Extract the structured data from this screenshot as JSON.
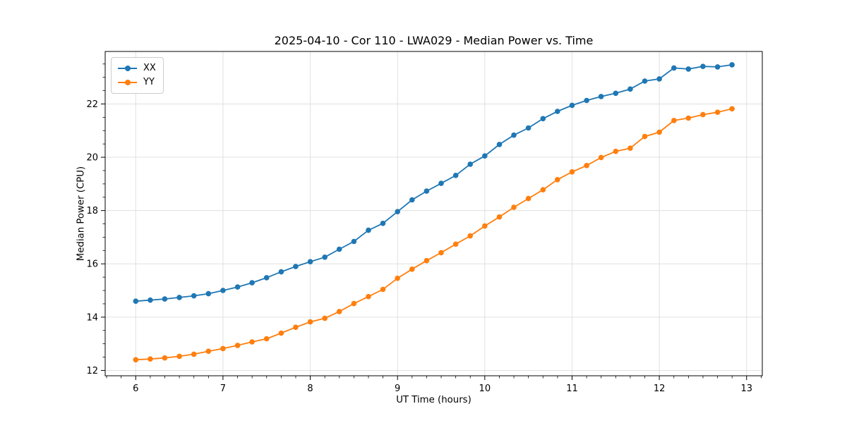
{
  "chart_data": {
    "type": "line",
    "title": "2025-04-10 - Cor 110 - LWA029 - Median Power vs. Time",
    "xlabel": "UT Time (hours)",
    "ylabel": "Median Power (CPU)",
    "xlim": [
      5.65,
      13.18
    ],
    "ylim": [
      11.8,
      23.97
    ],
    "x_ticks": [
      6,
      7,
      8,
      9,
      10,
      11,
      12,
      13
    ],
    "y_ticks": [
      12,
      14,
      16,
      18,
      20,
      22
    ],
    "x_minor_step": 0.16667,
    "y_minor_step": 0.5,
    "grid": true,
    "grid_color": "#e0e0e0",
    "axis_color": "#000000",
    "legend_position": "upper left",
    "x": [
      6.0,
      6.167,
      6.333,
      6.5,
      6.667,
      6.833,
      7.0,
      7.167,
      7.333,
      7.5,
      7.667,
      7.833,
      8.0,
      8.167,
      8.333,
      8.5,
      8.667,
      8.833,
      9.0,
      9.167,
      9.333,
      9.5,
      9.667,
      9.833,
      10.0,
      10.167,
      10.333,
      10.5,
      10.667,
      10.833,
      11.0,
      11.167,
      11.333,
      11.5,
      11.667,
      11.833,
      12.0,
      12.167,
      12.333,
      12.5,
      12.667,
      12.833
    ],
    "series": [
      {
        "name": "XX",
        "color": "#1f77b4",
        "values": [
          14.6,
          14.64,
          14.68,
          14.74,
          14.8,
          14.88,
          15.0,
          15.13,
          15.29,
          15.48,
          15.7,
          15.9,
          16.08,
          16.25,
          16.55,
          16.84,
          17.26,
          17.52,
          17.96,
          18.4,
          18.73,
          19.02,
          19.32,
          19.74,
          20.05,
          20.48,
          20.83,
          21.1,
          21.45,
          21.72,
          21.95,
          22.13,
          22.28,
          22.4,
          22.56,
          22.86,
          22.94,
          23.35,
          23.31,
          23.41,
          23.39,
          23.47
        ]
      },
      {
        "name": "YY",
        "color": "#ff7f0e",
        "values": [
          12.4,
          12.43,
          12.47,
          12.53,
          12.61,
          12.72,
          12.82,
          12.94,
          13.07,
          13.19,
          13.4,
          13.62,
          13.82,
          13.96,
          14.21,
          14.51,
          14.77,
          15.04,
          15.46,
          15.8,
          16.12,
          16.42,
          16.74,
          17.05,
          17.42,
          17.76,
          18.12,
          18.45,
          18.78,
          19.16,
          19.45,
          19.69,
          19.99,
          20.22,
          20.34,
          20.78,
          20.94,
          21.38,
          21.47,
          21.6,
          21.69,
          21.82
        ]
      }
    ]
  }
}
